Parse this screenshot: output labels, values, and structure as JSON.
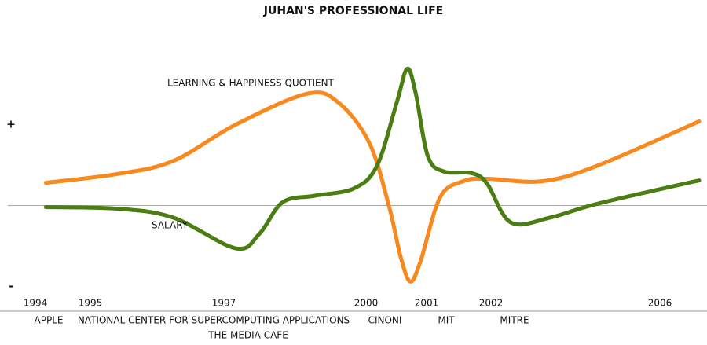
{
  "chart_data": {
    "type": "line",
    "title": "JUHAN'S PROFESSIONAL LIFE",
    "xlim": [
      1994,
      2007
    ],
    "xticks": [
      1994,
      1995,
      1997,
      2000,
      2001,
      2002,
      2006
    ],
    "ylim": [
      -1.2,
      2.2
    ],
    "yticks": [
      {
        "value": 1,
        "label": "+"
      },
      {
        "value": -1,
        "label": "-"
      }
    ],
    "annotations": [
      "APPLE",
      "NATIONAL CENTER FOR SUPERCOMPUTING APPLICATIONS",
      "CINONI",
      "MIT",
      "MITRE",
      "THE MEDIA CAFE"
    ],
    "series": [
      {
        "name": "LEARNING & HAPPINESS QUOTIENT",
        "color": "#f7891f",
        "x": [
          1994.19,
          1995.41,
          1996.24,
          1997.25,
          1998.74,
          1999.4,
          2000.05,
          2000.38,
          2000.57,
          2000.73,
          2000.9,
          2001.21,
          2001.57,
          2001.94,
          2003.21,
          2004.51,
          2006.93
        ],
        "values": [
          0.28,
          0.39,
          0.55,
          1.0,
          1.38,
          1.28,
          0.78,
          -0.01,
          -0.63,
          -0.94,
          -0.69,
          0.1,
          0.3,
          0.33,
          0.3,
          0.49,
          1.04
        ]
      },
      {
        "name": "SALARY",
        "color": "#4a7d12",
        "x": [
          1994.19,
          1995.41,
          1996.24,
          1997.25,
          1997.75,
          1998.24,
          1998.91,
          1999.74,
          2000.18,
          2000.51,
          2000.68,
          2000.82,
          2001.02,
          2001.27,
          2001.7,
          2001.94,
          2002.47,
          2003.4,
          2004.51,
          2006.93
        ],
        "values": [
          -0.02,
          -0.04,
          -0.15,
          -0.53,
          -0.35,
          0.04,
          0.12,
          0.21,
          0.49,
          1.28,
          1.69,
          1.39,
          0.61,
          0.42,
          0.4,
          0.27,
          -0.21,
          -0.15,
          0.02,
          0.31
        ]
      }
    ]
  }
}
